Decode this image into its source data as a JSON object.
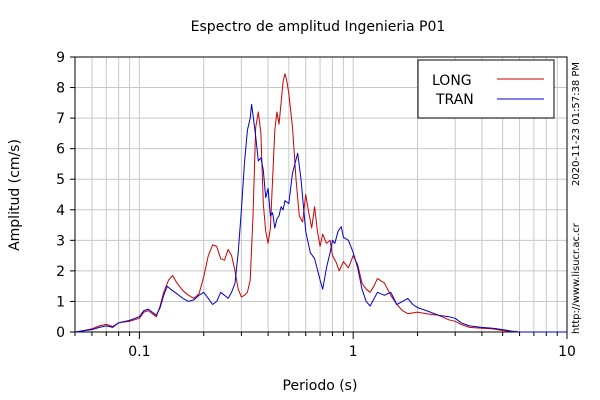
{
  "chart_data": {
    "type": "line",
    "title": "Espectro de amplitud Ingenieria P01",
    "xlabel": "Periodo (s)",
    "ylabel": "Amplitud (cm/s)",
    "xscale": "log",
    "xlim": [
      0.05,
      10
    ],
    "ylim": [
      0,
      9
    ],
    "x_tick_labels": [
      "0.1",
      "1",
      "10"
    ],
    "y_tick_labels": [
      "0",
      "1",
      "2",
      "3",
      "4",
      "5",
      "6",
      "7",
      "8",
      "9"
    ],
    "grid": true,
    "legend_position": "top-right",
    "series": [
      {
        "name": "LONG",
        "color": "#cc0000",
        "points": [
          [
            0.05,
            0.0
          ],
          [
            0.055,
            0.05
          ],
          [
            0.06,
            0.1
          ],
          [
            0.065,
            0.2
          ],
          [
            0.07,
            0.25
          ],
          [
            0.075,
            0.18
          ],
          [
            0.08,
            0.3
          ],
          [
            0.09,
            0.35
          ],
          [
            0.1,
            0.45
          ],
          [
            0.105,
            0.65
          ],
          [
            0.11,
            0.7
          ],
          [
            0.115,
            0.6
          ],
          [
            0.12,
            0.5
          ],
          [
            0.125,
            0.85
          ],
          [
            0.13,
            1.3
          ],
          [
            0.137,
            1.7
          ],
          [
            0.143,
            1.85
          ],
          [
            0.15,
            1.6
          ],
          [
            0.16,
            1.35
          ],
          [
            0.17,
            1.2
          ],
          [
            0.18,
            1.1
          ],
          [
            0.19,
            1.25
          ],
          [
            0.2,
            1.8
          ],
          [
            0.21,
            2.5
          ],
          [
            0.22,
            2.85
          ],
          [
            0.23,
            2.8
          ],
          [
            0.24,
            2.4
          ],
          [
            0.25,
            2.35
          ],
          [
            0.26,
            2.7
          ],
          [
            0.27,
            2.5
          ],
          [
            0.28,
            2.0
          ],
          [
            0.29,
            1.4
          ],
          [
            0.3,
            1.15
          ],
          [
            0.31,
            1.2
          ],
          [
            0.32,
            1.3
          ],
          [
            0.33,
            1.7
          ],
          [
            0.34,
            3.8
          ],
          [
            0.35,
            6.7
          ],
          [
            0.36,
            7.2
          ],
          [
            0.37,
            6.5
          ],
          [
            0.38,
            4.2
          ],
          [
            0.39,
            3.3
          ],
          [
            0.4,
            2.9
          ],
          [
            0.41,
            3.4
          ],
          [
            0.42,
            5.0
          ],
          [
            0.43,
            6.6
          ],
          [
            0.44,
            7.2
          ],
          [
            0.45,
            6.8
          ],
          [
            0.46,
            7.5
          ],
          [
            0.47,
            8.2
          ],
          [
            0.48,
            8.45
          ],
          [
            0.49,
            8.2
          ],
          [
            0.5,
            7.8
          ],
          [
            0.52,
            6.7
          ],
          [
            0.54,
            5.0
          ],
          [
            0.56,
            3.8
          ],
          [
            0.58,
            3.6
          ],
          [
            0.6,
            4.5
          ],
          [
            0.62,
            3.9
          ],
          [
            0.64,
            3.4
          ],
          [
            0.66,
            4.1
          ],
          [
            0.68,
            3.3
          ],
          [
            0.7,
            2.8
          ],
          [
            0.72,
            3.2
          ],
          [
            0.75,
            2.9
          ],
          [
            0.78,
            3.0
          ],
          [
            0.8,
            2.5
          ],
          [
            0.83,
            2.3
          ],
          [
            0.86,
            2.0
          ],
          [
            0.9,
            2.3
          ],
          [
            0.95,
            2.1
          ],
          [
            1.0,
            2.5
          ],
          [
            1.05,
            2.2
          ],
          [
            1.1,
            1.6
          ],
          [
            1.15,
            1.4
          ],
          [
            1.2,
            1.3
          ],
          [
            1.25,
            1.5
          ],
          [
            1.3,
            1.75
          ],
          [
            1.4,
            1.6
          ],
          [
            1.5,
            1.2
          ],
          [
            1.6,
            0.9
          ],
          [
            1.7,
            0.7
          ],
          [
            1.8,
            0.6
          ],
          [
            2.0,
            0.65
          ],
          [
            2.2,
            0.6
          ],
          [
            2.5,
            0.55
          ],
          [
            2.8,
            0.4
          ],
          [
            3.0,
            0.35
          ],
          [
            3.2,
            0.25
          ],
          [
            3.5,
            0.15
          ],
          [
            4.0,
            0.12
          ],
          [
            4.5,
            0.1
          ],
          [
            5.0,
            0.05
          ],
          [
            5.5,
            0.02
          ],
          [
            6.0,
            0.0
          ],
          [
            10.0,
            0.0
          ]
        ]
      },
      {
        "name": "TRAN",
        "color": "#0000cc",
        "points": [
          [
            0.05,
            0.0
          ],
          [
            0.055,
            0.04
          ],
          [
            0.06,
            0.08
          ],
          [
            0.065,
            0.15
          ],
          [
            0.07,
            0.2
          ],
          [
            0.075,
            0.15
          ],
          [
            0.08,
            0.3
          ],
          [
            0.09,
            0.38
          ],
          [
            0.1,
            0.5
          ],
          [
            0.105,
            0.7
          ],
          [
            0.11,
            0.75
          ],
          [
            0.115,
            0.65
          ],
          [
            0.12,
            0.55
          ],
          [
            0.125,
            0.8
          ],
          [
            0.13,
            1.2
          ],
          [
            0.135,
            1.5
          ],
          [
            0.14,
            1.4
          ],
          [
            0.15,
            1.25
          ],
          [
            0.16,
            1.1
          ],
          [
            0.17,
            1.0
          ],
          [
            0.18,
            1.05
          ],
          [
            0.19,
            1.2
          ],
          [
            0.2,
            1.3
          ],
          [
            0.21,
            1.1
          ],
          [
            0.22,
            0.9
          ],
          [
            0.23,
            1.0
          ],
          [
            0.24,
            1.3
          ],
          [
            0.25,
            1.2
          ],
          [
            0.26,
            1.1
          ],
          [
            0.27,
            1.3
          ],
          [
            0.28,
            1.6
          ],
          [
            0.29,
            2.6
          ],
          [
            0.3,
            4.0
          ],
          [
            0.31,
            5.5
          ],
          [
            0.32,
            6.6
          ],
          [
            0.33,
            7.0
          ],
          [
            0.335,
            7.45
          ],
          [
            0.34,
            7.1
          ],
          [
            0.35,
            6.4
          ],
          [
            0.36,
            5.6
          ],
          [
            0.37,
            5.7
          ],
          [
            0.38,
            5.3
          ],
          [
            0.39,
            4.4
          ],
          [
            0.4,
            4.7
          ],
          [
            0.41,
            3.8
          ],
          [
            0.42,
            3.9
          ],
          [
            0.43,
            3.4
          ],
          [
            0.44,
            3.7
          ],
          [
            0.45,
            3.8
          ],
          [
            0.46,
            4.1
          ],
          [
            0.47,
            4.0
          ],
          [
            0.48,
            4.3
          ],
          [
            0.5,
            4.2
          ],
          [
            0.52,
            5.2
          ],
          [
            0.55,
            5.85
          ],
          [
            0.57,
            5.0
          ],
          [
            0.6,
            3.3
          ],
          [
            0.63,
            2.6
          ],
          [
            0.66,
            2.4
          ],
          [
            0.7,
            1.7
          ],
          [
            0.72,
            1.4
          ],
          [
            0.75,
            2.1
          ],
          [
            0.78,
            2.6
          ],
          [
            0.8,
            3.0
          ],
          [
            0.82,
            2.9
          ],
          [
            0.85,
            3.3
          ],
          [
            0.88,
            3.45
          ],
          [
            0.9,
            3.1
          ],
          [
            0.95,
            3.0
          ],
          [
            1.0,
            2.6
          ],
          [
            1.05,
            2.1
          ],
          [
            1.1,
            1.4
          ],
          [
            1.15,
            1.0
          ],
          [
            1.2,
            0.85
          ],
          [
            1.3,
            1.3
          ],
          [
            1.4,
            1.2
          ],
          [
            1.5,
            1.3
          ],
          [
            1.6,
            0.9
          ],
          [
            1.7,
            1.0
          ],
          [
            1.8,
            1.1
          ],
          [
            1.9,
            0.9
          ],
          [
            2.0,
            0.8
          ],
          [
            2.2,
            0.7
          ],
          [
            2.5,
            0.55
          ],
          [
            2.8,
            0.5
          ],
          [
            3.0,
            0.45
          ],
          [
            3.2,
            0.3
          ],
          [
            3.5,
            0.2
          ],
          [
            4.0,
            0.15
          ],
          [
            4.5,
            0.12
          ],
          [
            5.0,
            0.08
          ],
          [
            5.5,
            0.03
          ],
          [
            6.0,
            0.0
          ],
          [
            10.0,
            0.0
          ]
        ]
      }
    ],
    "annotations": [
      "2020-11-23 01:57:38 PM",
      "http://www.lisucr.ac.cr"
    ]
  }
}
